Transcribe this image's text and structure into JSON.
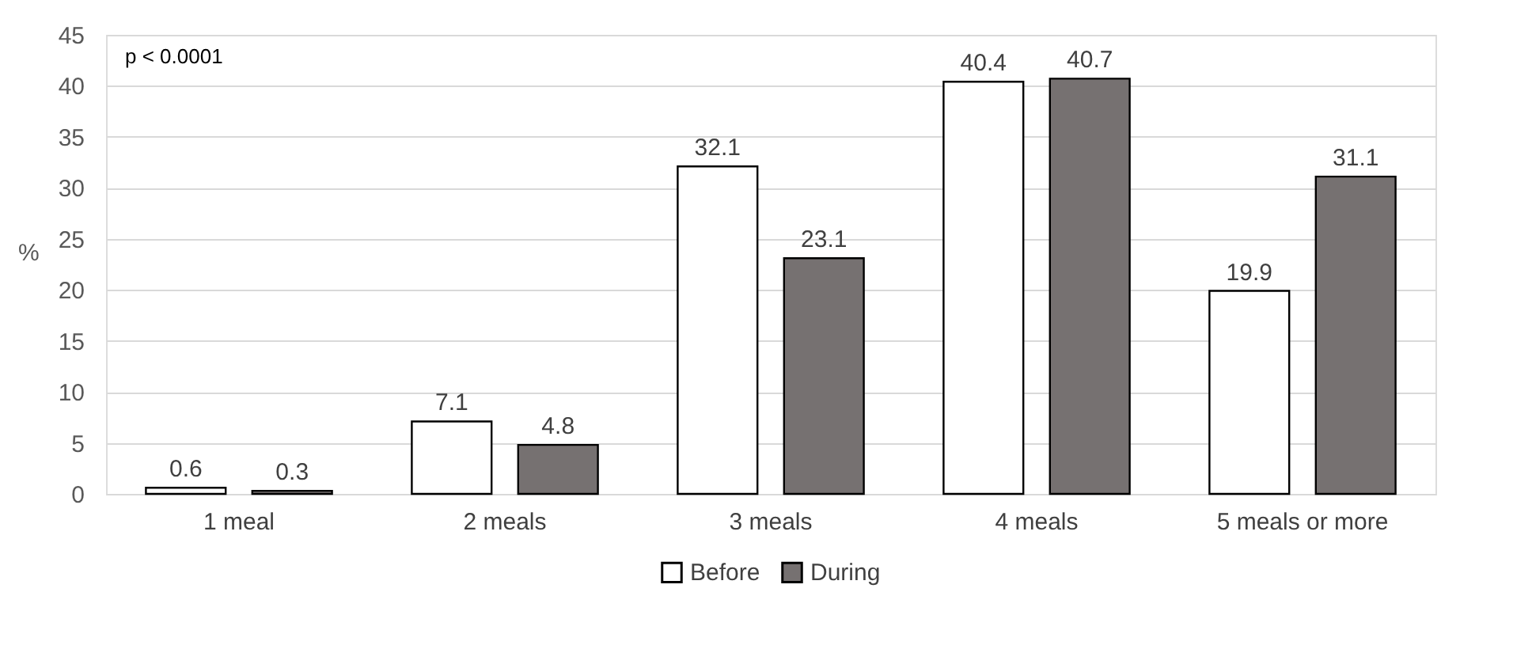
{
  "chart_data": {
    "type": "bar",
    "ylabel": "%",
    "categories": [
      "1 meal",
      "2 meals",
      "3 meals",
      "4 meals",
      "5 meals or more"
    ],
    "series": [
      {
        "name": "Before",
        "color": "#ffffff",
        "values": [
          0.6,
          7.1,
          32.1,
          40.4,
          19.9
        ]
      },
      {
        "name": "During",
        "color": "#767171",
        "values": [
          0.3,
          4.8,
          23.1,
          40.7,
          31.1
        ]
      }
    ],
    "ylim": [
      0,
      45
    ],
    "yticks": [
      0,
      5,
      10,
      15,
      20,
      25,
      30,
      35,
      40,
      45
    ],
    "grid": "y",
    "legend": "bottom",
    "data_labels": true,
    "annotations": [
      "p < 0.0001"
    ]
  }
}
